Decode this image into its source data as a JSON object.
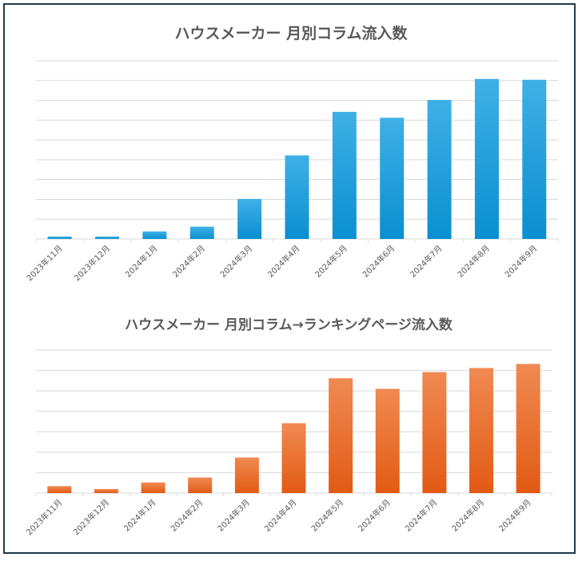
{
  "chart_data": [
    {
      "type": "bar",
      "title": "ハウスメーカー 月別コラム流入数",
      "categories": [
        "2023年11月",
        "2023年12月",
        "2024年1月",
        "2024年2月",
        "2024年3月",
        "2024年4月",
        "2024年5月",
        "2024年6月",
        "2024年7月",
        "2024年8月",
        "2024年9月"
      ],
      "series": [
        {
          "values": [
            1.2,
            1.2,
            3.8,
            6.2,
            20.2,
            42.2,
            64.2,
            61.2,
            70.2,
            80.8,
            80.4
          ]
        }
      ],
      "ylim": [
        0,
        90
      ],
      "grid": true,
      "color": "#1f9bd8"
    },
    {
      "type": "bar",
      "title": "ハウスメーカー 月別コラム→ランキングページ流入数",
      "categories": [
        "2023年11月",
        "2023年12月",
        "2024年1月",
        "2024年2月",
        "2024年3月",
        "2024年4月",
        "2024年5月",
        "2024年6月",
        "2024年7月",
        "2024年8月",
        "2024年9月"
      ],
      "series": [
        {
          "values": [
            3.4,
            2.0,
            5.2,
            7.6,
            17.4,
            34.2,
            56.2,
            51.0,
            59.2,
            61.2,
            63.2
          ]
        }
      ],
      "ylim": [
        0,
        70
      ],
      "grid": true,
      "color": "#e8661f"
    }
  ]
}
